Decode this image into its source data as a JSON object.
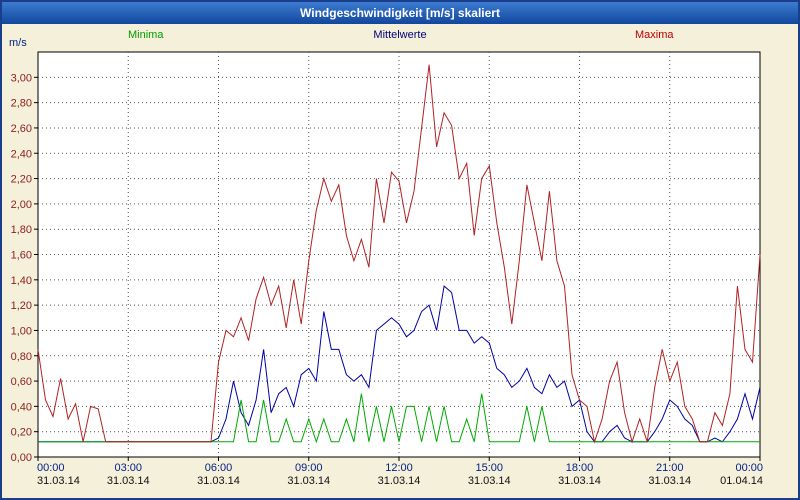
{
  "window": {
    "title": "Windgeschwindigkeit [m/s] skaliert"
  },
  "legend": [
    {
      "label": "Minima",
      "color": "#00a000"
    },
    {
      "label": "Mittelwerte",
      "color": "#000080"
    },
    {
      "label": "Maxima",
      "color": "#c00000"
    }
  ],
  "chart_data": {
    "type": "line",
    "title": "Windgeschwindigkeit [m/s] skaliert",
    "ylabel": "m/s",
    "ylim": [
      0,
      3.2
    ],
    "y_tick_step": 0.2,
    "grid": "dotted",
    "x_interval_minutes": 15,
    "x_ticks": [
      {
        "hour": 0,
        "time": "00:00",
        "date": "31.03.14"
      },
      {
        "hour": 3,
        "time": "03:00",
        "date": "31.03.14"
      },
      {
        "hour": 6,
        "time": "06:00",
        "date": "31.03.14"
      },
      {
        "hour": 9,
        "time": "09:00",
        "date": "31.03.14"
      },
      {
        "hour": 12,
        "time": "12:00",
        "date": "31.03.14"
      },
      {
        "hour": 15,
        "time": "15:00",
        "date": "31.03.14"
      },
      {
        "hour": 18,
        "time": "18:00",
        "date": "31.03.14"
      },
      {
        "hour": 21,
        "time": "21:00",
        "date": "31.03.14"
      },
      {
        "hour": 24,
        "time": "00:00",
        "date": "01.04.14"
      }
    ],
    "series": [
      {
        "name": "Mittelwerte",
        "color": "#0000a8",
        "values": [
          0.12,
          0.12,
          0.12,
          0.12,
          0.12,
          0.12,
          0.12,
          0.12,
          0.12,
          0.12,
          0.12,
          0.12,
          0.12,
          0.12,
          0.12,
          0.12,
          0.12,
          0.12,
          0.12,
          0.12,
          0.12,
          0.12,
          0.12,
          0.12,
          0.15,
          0.3,
          0.6,
          0.35,
          0.25,
          0.45,
          0.85,
          0.35,
          0.5,
          0.55,
          0.4,
          0.65,
          0.7,
          0.6,
          1.15,
          0.85,
          0.85,
          0.65,
          0.6,
          0.65,
          0.55,
          1.0,
          1.05,
          1.1,
          1.05,
          0.95,
          1.0,
          1.15,
          1.2,
          1.0,
          1.35,
          1.3,
          1.0,
          1.0,
          0.9,
          0.95,
          0.9,
          0.7,
          0.65,
          0.55,
          0.6,
          0.7,
          0.55,
          0.5,
          0.65,
          0.55,
          0.6,
          0.4,
          0.45,
          0.2,
          0.12,
          0.12,
          0.2,
          0.25,
          0.15,
          0.12,
          0.12,
          0.12,
          0.2,
          0.3,
          0.45,
          0.4,
          0.3,
          0.25,
          0.12,
          0.12,
          0.15,
          0.12,
          0.2,
          0.3,
          0.5,
          0.3,
          0.55
        ]
      },
      {
        "name": "Minima",
        "color": "#00aa00",
        "values": [
          0.12,
          0.12,
          0.12,
          0.12,
          0.12,
          0.12,
          0.12,
          0.12,
          0.12,
          0.12,
          0.12,
          0.12,
          0.12,
          0.12,
          0.12,
          0.12,
          0.12,
          0.12,
          0.12,
          0.12,
          0.12,
          0.12,
          0.12,
          0.12,
          0.12,
          0.12,
          0.12,
          0.45,
          0.12,
          0.12,
          0.45,
          0.12,
          0.12,
          0.3,
          0.12,
          0.12,
          0.3,
          0.12,
          0.3,
          0.12,
          0.12,
          0.3,
          0.12,
          0.5,
          0.12,
          0.4,
          0.12,
          0.4,
          0.12,
          0.4,
          0.4,
          0.12,
          0.4,
          0.12,
          0.4,
          0.12,
          0.12,
          0.3,
          0.12,
          0.5,
          0.12,
          0.12,
          0.12,
          0.12,
          0.12,
          0.4,
          0.12,
          0.4,
          0.12,
          0.12,
          0.12,
          0.12,
          0.12,
          0.12,
          0.12,
          0.12,
          0.12,
          0.12,
          0.12,
          0.12,
          0.12,
          0.12,
          0.12,
          0.12,
          0.12,
          0.12,
          0.12,
          0.12,
          0.12,
          0.12,
          0.12,
          0.12,
          0.12,
          0.12,
          0.12,
          0.12,
          0.12
        ]
      },
      {
        "name": "Maxima",
        "color": "#b22222",
        "values": [
          0.85,
          0.45,
          0.32,
          0.62,
          0.3,
          0.42,
          0.12,
          0.4,
          0.38,
          0.12,
          0.12,
          0.12,
          0.12,
          0.12,
          0.12,
          0.12,
          0.12,
          0.12,
          0.12,
          0.12,
          0.12,
          0.12,
          0.12,
          0.12,
          0.75,
          1.0,
          0.95,
          1.1,
          0.92,
          1.25,
          1.42,
          1.2,
          1.35,
          1.02,
          1.4,
          1.05,
          1.55,
          1.95,
          2.2,
          2.02,
          2.15,
          1.75,
          1.55,
          1.72,
          1.5,
          2.2,
          1.85,
          2.25,
          2.18,
          1.85,
          2.1,
          2.6,
          3.1,
          2.45,
          2.72,
          2.62,
          2.2,
          2.32,
          1.75,
          2.2,
          2.3,
          1.85,
          1.5,
          1.05,
          1.55,
          2.15,
          1.85,
          1.55,
          2.1,
          1.55,
          1.35,
          0.65,
          0.45,
          0.4,
          0.12,
          0.3,
          0.6,
          0.75,
          0.35,
          0.12,
          0.3,
          0.12,
          0.55,
          0.85,
          0.6,
          0.75,
          0.4,
          0.3,
          0.12,
          0.12,
          0.35,
          0.25,
          0.5,
          1.35,
          0.85,
          0.75,
          1.6
        ]
      }
    ]
  }
}
